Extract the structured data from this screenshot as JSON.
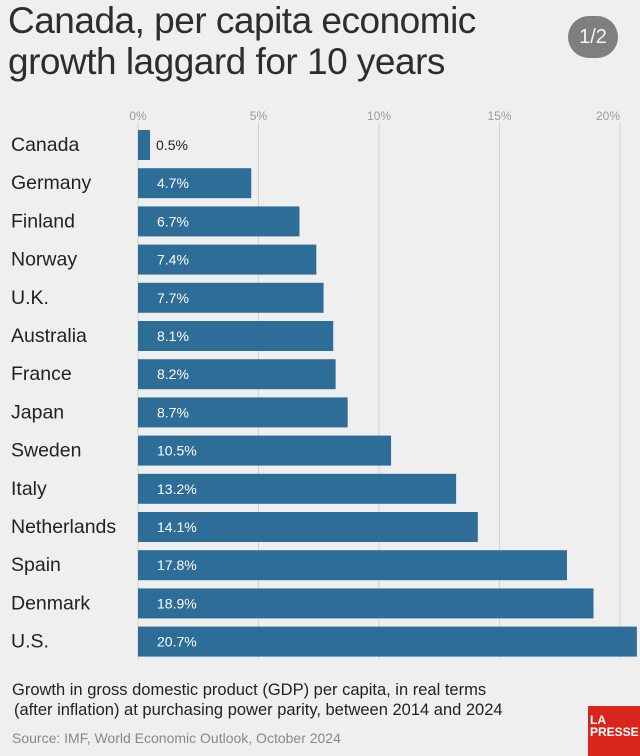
{
  "header": {
    "title": "Canada, per capita economic growth laggard for 10 years",
    "page_indicator": "1/2"
  },
  "chart_data": {
    "type": "bar",
    "orientation": "horizontal",
    "categories": [
      "Canada",
      "Germany",
      "Finland",
      "Norway",
      "U.K.",
      "Australia",
      "France",
      "Japan",
      "Sweden",
      "Italy",
      "Netherlands",
      "Spain",
      "Denmark",
      "U.S."
    ],
    "values": [
      0.5,
      4.7,
      6.7,
      7.4,
      7.7,
      8.1,
      8.2,
      8.7,
      10.5,
      13.2,
      14.1,
      17.8,
      18.9,
      20.7
    ],
    "value_labels": [
      "0.5%",
      "4.7%",
      "6.7%",
      "7.4%",
      "7.7%",
      "8.1%",
      "8.2%",
      "8.7%",
      "10.5%",
      "13.2%",
      "14.1%",
      "17.8%",
      "18.9%",
      "20.7%"
    ],
    "x_ticks": [
      0,
      5,
      10,
      15,
      20
    ],
    "x_tick_labels": [
      "0%",
      "5%",
      "10%",
      "15%",
      "20%"
    ],
    "xlim": [
      0,
      20.7
    ],
    "grid": true,
    "bar_color": "#2f6d99",
    "label_color_inside": "#ffffff",
    "label_color_outside": "#222222"
  },
  "caption": {
    "line1": "Growth in gross domestic product (GDP) per capita, in real terms",
    "line2": "(after inflation) at purchasing power parity, between 2014 and 2024",
    "source": "Source: IMF, World Economic Outlook, October 2024"
  },
  "logo": {
    "line1": "LA",
    "line2": "PRESSE",
    "color": "#d9261c"
  }
}
